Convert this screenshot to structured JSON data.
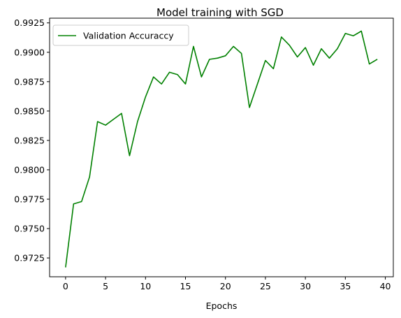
{
  "chart_data": {
    "type": "line",
    "title": "Model training with SGD",
    "xlabel": "Epochs",
    "ylabel": "",
    "xlim": [
      -2,
      41
    ],
    "ylim": [
      0.9709,
      0.9929
    ],
    "xticks": [
      0,
      5,
      10,
      15,
      20,
      25,
      30,
      35,
      40
    ],
    "yticks": [
      0.9725,
      0.975,
      0.9775,
      0.98,
      0.9825,
      0.985,
      0.9875,
      0.99,
      0.9925
    ],
    "ytick_labels": [
      "0.9725",
      "0.9750",
      "0.9775",
      "0.9800",
      "0.9825",
      "0.9850",
      "0.9875",
      "0.9900",
      "0.9925"
    ],
    "grid": false,
    "legend_position": "top-left",
    "series": [
      {
        "name": "Validation Accuraccy",
        "color": "#008000",
        "x": [
          0,
          1,
          2,
          3,
          4,
          5,
          6,
          7,
          8,
          9,
          10,
          11,
          12,
          13,
          14,
          15,
          16,
          17,
          18,
          19,
          20,
          21,
          22,
          23,
          24,
          25,
          26,
          27,
          28,
          29,
          30,
          31,
          32,
          33,
          34,
          35,
          36,
          37,
          38,
          39
        ],
        "values": [
          0.9717,
          0.9771,
          0.9773,
          0.9794,
          0.9841,
          0.9838,
          0.9843,
          0.9848,
          0.9812,
          0.9841,
          0.9862,
          0.9879,
          0.9873,
          0.9883,
          0.9881,
          0.9873,
          0.9905,
          0.9879,
          0.9894,
          0.9895,
          0.9897,
          0.9905,
          0.9899,
          0.9853,
          0.9873,
          0.9893,
          0.9886,
          0.9913,
          0.9906,
          0.9896,
          0.9904,
          0.9889,
          0.9903,
          0.9895,
          0.9903,
          0.9916,
          0.9914,
          0.9918,
          0.989,
          0.9894
        ]
      }
    ]
  }
}
